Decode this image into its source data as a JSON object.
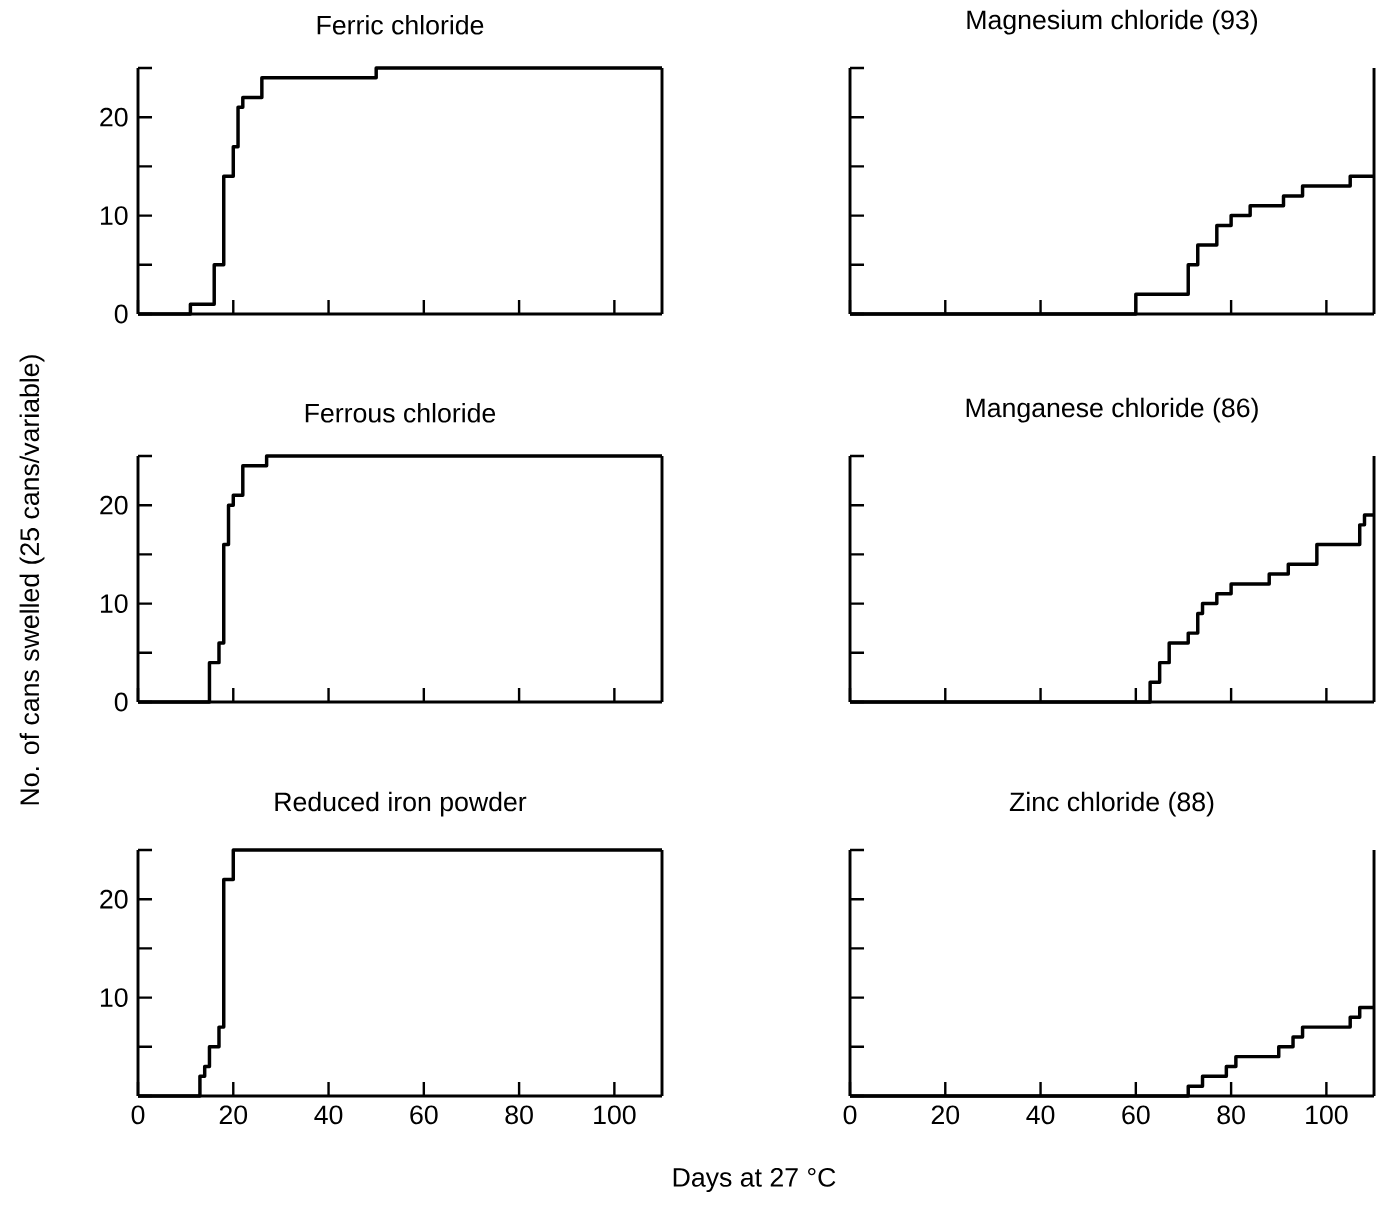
{
  "chart_data": [
    {
      "type": "step",
      "title": "Ferric chloride",
      "x": [
        0,
        11,
        16,
        18,
        20,
        21,
        22,
        26,
        50,
        110
      ],
      "series": [
        {
          "color": "#000000",
          "values": [
            0,
            1,
            5,
            14,
            17,
            21,
            22,
            24,
            25,
            25
          ]
        }
      ],
      "xlim": [
        0,
        110
      ],
      "ylim": [
        0,
        25
      ],
      "xticks": [
        0,
        20,
        40,
        60,
        80,
        100
      ],
      "yticks": [
        0,
        {
          "value": 5,
          "label": null
        },
        10,
        {
          "value": 15,
          "label": null
        },
        20,
        {
          "value": 25,
          "label": null
        }
      ],
      "tick_labels": "y"
    },
    {
      "type": "step",
      "title": "Magnesium chloride (93)",
      "x": [
        0,
        60,
        71,
        73,
        77,
        80,
        84,
        91,
        95,
        105,
        110
      ],
      "series": [
        {
          "color": "#000000",
          "values": [
            0,
            2,
            5,
            7,
            9,
            10,
            11,
            12,
            13,
            14,
            14
          ]
        }
      ],
      "xlim": [
        0,
        110
      ],
      "ylim": [
        0,
        25
      ],
      "xticks": [
        0,
        20,
        40,
        60,
        80,
        100
      ],
      "yticks": [
        0,
        5,
        10,
        15,
        20,
        25
      ],
      "tick_labels": false
    },
    {
      "type": "step",
      "title": "Ferrous chloride",
      "ylabel": "No. of cans swelled (25 cans/variable)",
      "x": [
        0,
        15,
        17,
        18,
        19,
        20,
        22,
        27,
        110
      ],
      "series": [
        {
          "color": "#000000",
          "values": [
            0,
            4,
            6,
            16,
            20,
            21,
            24,
            25,
            25
          ]
        }
      ],
      "xlim": [
        0,
        110
      ],
      "ylim": [
        0,
        25
      ],
      "xticks": [
        0,
        20,
        40,
        60,
        80,
        100
      ],
      "yticks": [
        0,
        {
          "value": 5,
          "label": null
        },
        10,
        {
          "value": 15,
          "label": null
        },
        20,
        {
          "value": 25,
          "label": null
        }
      ],
      "tick_labels": "y"
    },
    {
      "type": "step",
      "title": "Manganese chloride (86)",
      "x": [
        0,
        63,
        65,
        67,
        71,
        73,
        74,
        77,
        80,
        88,
        92,
        98,
        107,
        108,
        110
      ],
      "series": [
        {
          "color": "#000000",
          "values": [
            0,
            2,
            4,
            6,
            7,
            9,
            10,
            11,
            12,
            13,
            14,
            16,
            18,
            19,
            19
          ]
        }
      ],
      "xlim": [
        0,
        110
      ],
      "ylim": [
        0,
        25
      ],
      "xticks": [
        0,
        20,
        40,
        60,
        80,
        100
      ],
      "yticks": [
        0,
        5,
        10,
        15,
        20,
        25
      ],
      "tick_labels": false
    },
    {
      "type": "step",
      "title": "Reduced iron powder",
      "xlabel": "Days at 27 °C",
      "x": [
        0,
        13,
        14,
        15,
        17,
        18,
        20,
        110
      ],
      "series": [
        {
          "color": "#000000",
          "values": [
            0,
            2,
            3,
            5,
            7,
            22,
            25,
            25
          ]
        }
      ],
      "xlim": [
        0,
        110
      ],
      "ylim": [
        0,
        25
      ],
      "xticks": [
        0,
        20,
        40,
        60,
        80,
        100
      ],
      "yticks": [
        {
          "value": 0,
          "label": null
        },
        {
          "value": 5,
          "label": null
        },
        10,
        {
          "value": 15,
          "label": null
        },
        20,
        {
          "value": 25,
          "label": null
        }
      ]
    },
    {
      "type": "step",
      "title": "Zinc chloride (88)",
      "x": [
        0,
        71,
        74,
        79,
        81,
        90,
        93,
        95,
        105,
        107,
        110
      ],
      "series": [
        {
          "color": "#000000",
          "values": [
            0,
            1,
            2,
            3,
            4,
            5,
            6,
            7,
            8,
            9,
            9
          ]
        }
      ],
      "xlim": [
        0,
        110
      ],
      "ylim": [
        0,
        25
      ],
      "xticks": [
        0,
        20,
        40,
        60,
        80,
        100
      ],
      "yticks": [
        0,
        5,
        10,
        15,
        20,
        25
      ],
      "tick_labels": "x"
    }
  ]
}
